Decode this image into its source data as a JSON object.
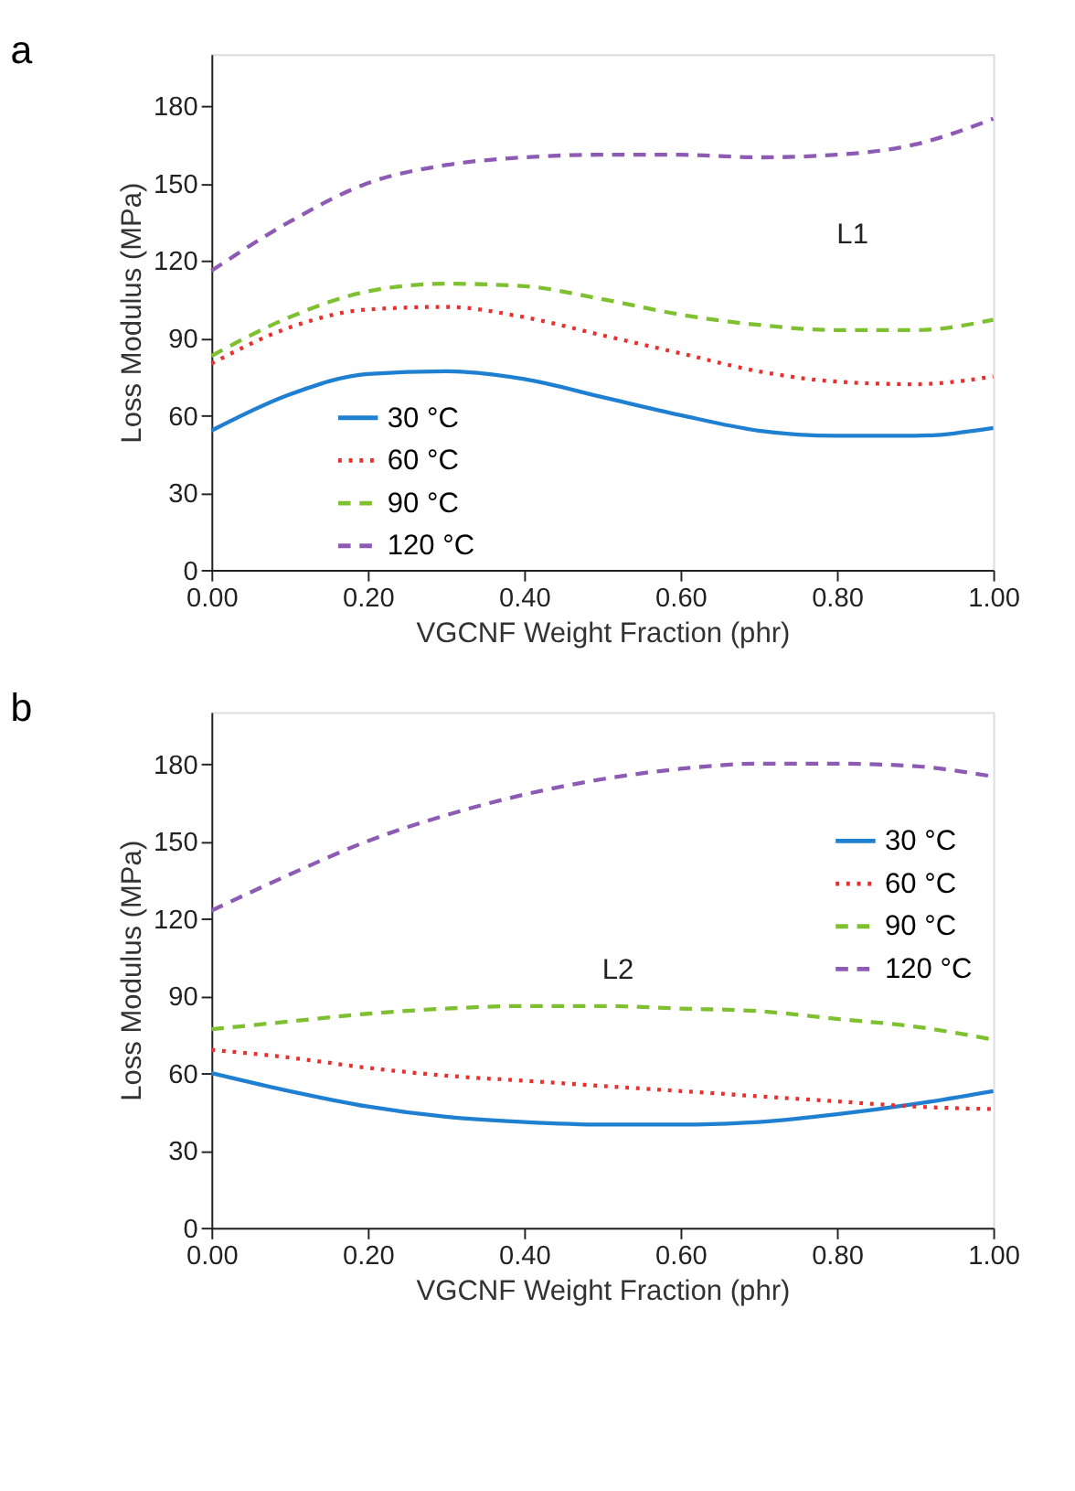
{
  "chart_data": [
    {
      "type": "line",
      "title": "a",
      "xlabel": "VGCNF Weight Fraction (phr)",
      "ylabel": "Loss Modulus (MPa)",
      "annotations": [
        "L1"
      ],
      "x": [
        0,
        0.1,
        0.2,
        0.3,
        0.4,
        0.5,
        0.6,
        0.7,
        0.8,
        0.9,
        1.0
      ],
      "xlim": [
        0,
        1
      ],
      "xticks": [
        {
          "value": 0,
          "label": "0.00"
        },
        {
          "value": 0.2,
          "label": "0.20"
        },
        {
          "value": 0.4,
          "label": "0.40"
        },
        {
          "value": 0.6,
          "label": "0.60"
        },
        {
          "value": 0.8,
          "label": "0.80"
        },
        {
          "value": 1,
          "label": "1.00"
        }
      ],
      "ylim": [
        0,
        200
      ],
      "yticks": [
        0,
        30,
        60,
        90,
        120,
        150,
        180
      ],
      "grid": false,
      "legend": "bottom left",
      "marker": "none",
      "series": [
        {
          "name": "30 °C",
          "color": "#1f7fd0",
          "line_style": "solid",
          "values": [
            54,
            68,
            76,
            77,
            74,
            67,
            60,
            54,
            52,
            52,
            55
          ]
        },
        {
          "name": "60 °C",
          "color": "#e8302e",
          "line_style": "dotted",
          "values": [
            80,
            94,
            101,
            102,
            98,
            91,
            84,
            77,
            73,
            72,
            75
          ]
        },
        {
          "name": "90 °C",
          "color": "#7fc031",
          "line_style": "dashed",
          "values": [
            83,
            98,
            108,
            111,
            110,
            105,
            99,
            95,
            93,
            93,
            97
          ]
        },
        {
          "name": "120 °C",
          "color": "#8e5bb4",
          "line_style": "dashed",
          "values": [
            116,
            135,
            150,
            157,
            160,
            161,
            161,
            160,
            161,
            165,
            175
          ]
        }
      ]
    },
    {
      "type": "line",
      "title": "b",
      "xlabel": "VGCNF Weight Fraction (phr)",
      "ylabel": "Loss Modulus (MPa)",
      "annotations": [
        "L2"
      ],
      "x": [
        0,
        0.1,
        0.2,
        0.3,
        0.4,
        0.5,
        0.6,
        0.7,
        0.8,
        0.9,
        1.0
      ],
      "xlim": [
        0,
        1
      ],
      "xticks": [
        {
          "value": 0,
          "label": "0.00"
        },
        {
          "value": 0.2,
          "label": "0.20"
        },
        {
          "value": 0.4,
          "label": "0.40"
        },
        {
          "value": 0.6,
          "label": "0.60"
        },
        {
          "value": 0.8,
          "label": "0.80"
        },
        {
          "value": 1,
          "label": "1.00"
        }
      ],
      "ylim": [
        0,
        200
      ],
      "yticks": [
        0,
        30,
        60,
        90,
        120,
        150,
        180
      ],
      "grid": false,
      "legend": "right",
      "marker": "none",
      "series": [
        {
          "name": "30 °C",
          "color": "#1f7fd0",
          "line_style": "solid",
          "values": [
            60,
            53,
            47,
            43,
            41,
            40,
            40,
            41,
            44,
            48,
            53
          ]
        },
        {
          "name": "60 °C",
          "color": "#e8302e",
          "line_style": "dotted",
          "values": [
            69,
            66,
            62,
            59,
            57,
            55,
            53,
            51,
            49,
            47,
            46
          ]
        },
        {
          "name": "90 °C",
          "color": "#7fc031",
          "line_style": "dashed",
          "values": [
            77,
            80,
            83,
            85,
            86,
            86,
            85,
            84,
            81,
            78,
            73
          ]
        },
        {
          "name": "120 °C",
          "color": "#8e5bb4",
          "line_style": "dashed",
          "values": [
            123,
            137,
            150,
            160,
            168,
            174,
            178,
            180,
            180,
            179,
            175
          ]
        }
      ]
    }
  ]
}
